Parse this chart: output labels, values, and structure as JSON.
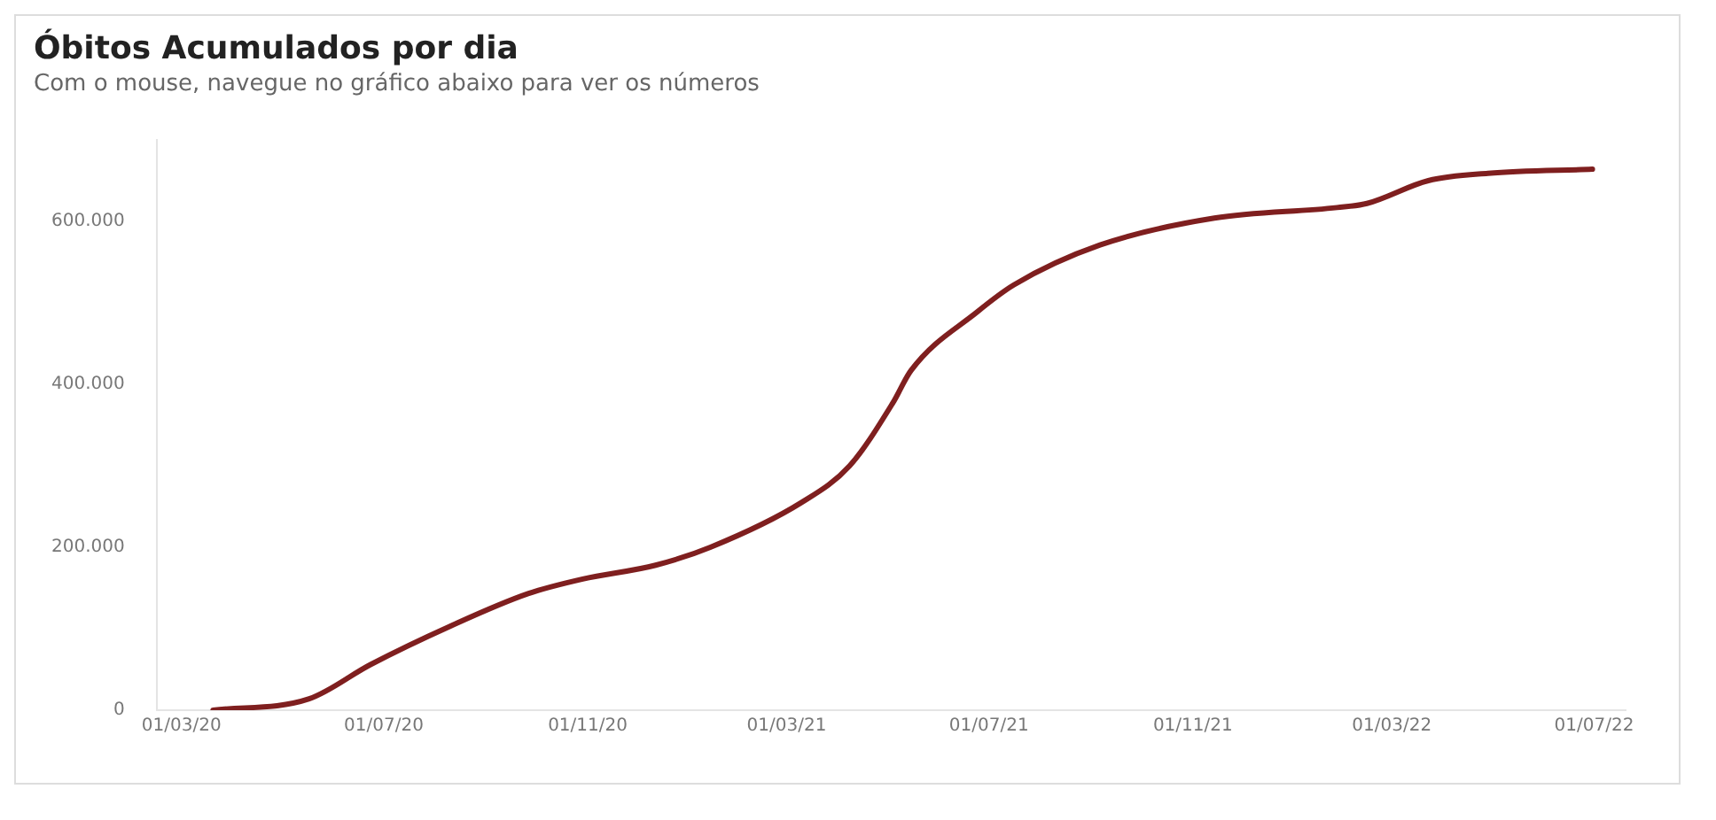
{
  "chart_data": {
    "type": "line",
    "title": "Óbitos Acumulados por dia",
    "subtitle": "Com o mouse, navegue no gráfico abaixo para ver os números",
    "x": [
      "2020-03-20",
      "2020-05-17",
      "2020-06-23",
      "2020-08-10",
      "2020-09-26",
      "2020-10-29",
      "2020-12-12",
      "2021-01-14",
      "2021-03-10",
      "2021-04-08",
      "2021-05-04",
      "2021-05-15",
      "2021-06-24",
      "2021-07-16",
      "2021-09-06",
      "2021-11-14",
      "2022-01-27",
      "2022-02-14",
      "2022-03-23",
      "2022-04-28",
      "2022-06-30"
    ],
    "series": [
      {
        "color": "#7f1f1f",
        "values": [
          0,
          14000,
          56000,
          103000,
          143000,
          161000,
          178000,
          200000,
          255000,
          300000,
          377000,
          417000,
          489000,
          522000,
          571000,
          604000,
          617000,
          622000,
          650000,
          659000,
          664000
        ]
      }
    ],
    "xlim": [
      "2020-02-15",
      "2022-07-20"
    ],
    "xticks": [
      {
        "value": "2020-03-01",
        "label": "01/03/20"
      },
      {
        "value": "2020-07-01",
        "label": "01/07/20"
      },
      {
        "value": "2020-11-01",
        "label": "01/11/20"
      },
      {
        "value": "2021-03-01",
        "label": "01/03/21"
      },
      {
        "value": "2021-07-01",
        "label": "01/07/21"
      },
      {
        "value": "2021-11-01",
        "label": "01/11/21"
      },
      {
        "value": "2022-03-01",
        "label": "01/03/22"
      },
      {
        "value": "2022-07-01",
        "label": "01/07/22"
      }
    ],
    "ylim": [
      0,
      700000
    ],
    "yticks": [
      0,
      {
        "value": 200000,
        "label": "200.000"
      },
      {
        "value": 400000,
        "label": "400.000"
      },
      {
        "value": 600000,
        "label": "600.000"
      }
    ],
    "grid": false,
    "legend": false,
    "marker": "none",
    "line_style": "solid"
  }
}
